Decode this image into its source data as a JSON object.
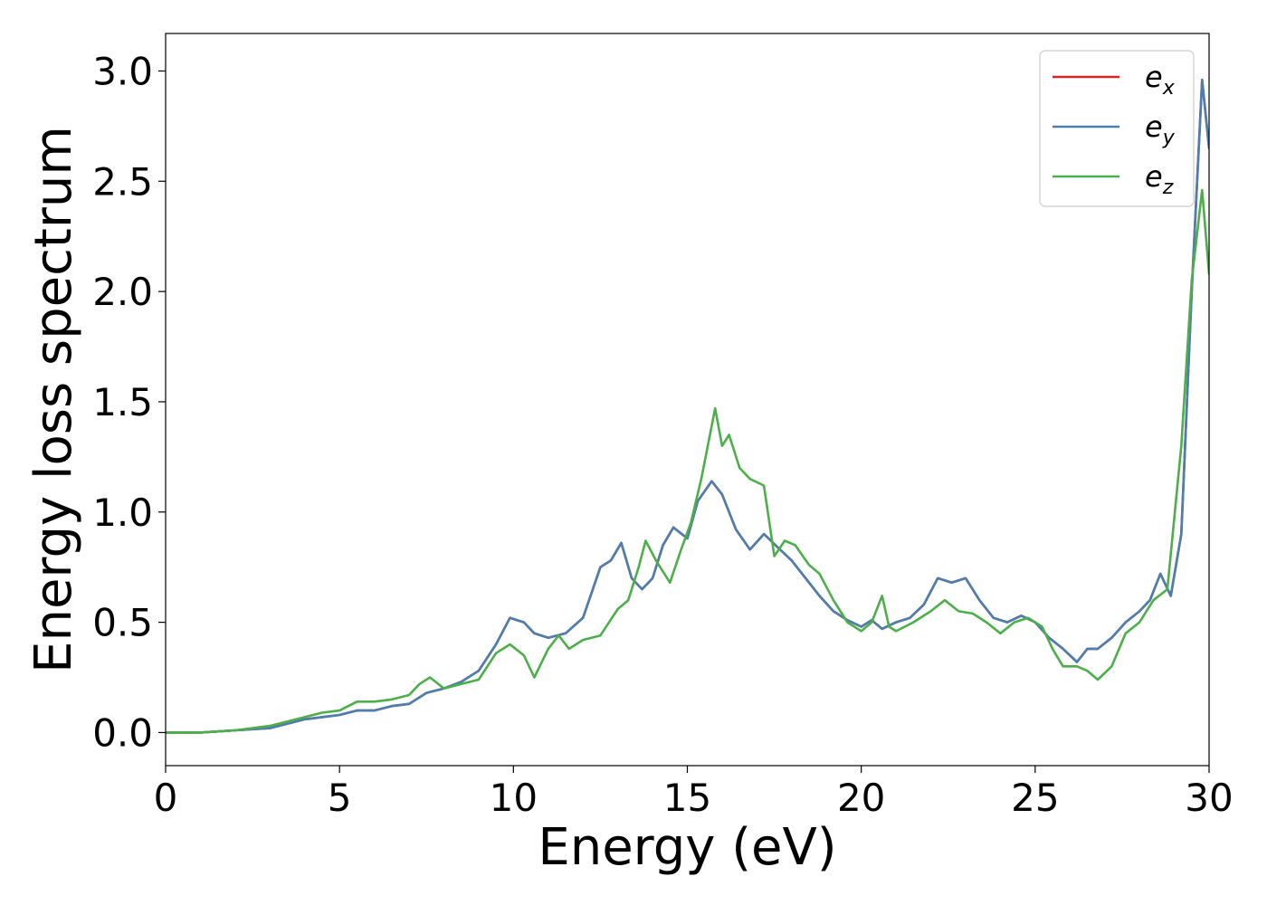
{
  "chart_data": {
    "type": "line",
    "title": "",
    "xlabel": "Energy (eV)",
    "ylabel": "Energy loss spectrum",
    "xlim": [
      0,
      30
    ],
    "ylim": [
      -0.15,
      3.17
    ],
    "xticks": [
      0,
      5,
      10,
      15,
      20,
      25,
      30
    ],
    "xtick_labels": [
      "0",
      "5",
      "10",
      "15",
      "20",
      "25",
      "30"
    ],
    "yticks": [
      0.0,
      0.5,
      1.0,
      1.5,
      2.0,
      2.5,
      3.0
    ],
    "ytick_labels": [
      "0.0",
      "0.5",
      "1.0",
      "1.5",
      "2.0",
      "2.5",
      "3.0"
    ],
    "grid": false,
    "legend_position": "top-right",
    "series": [
      {
        "name": "ex",
        "label_base": "e",
        "label_sub": "x",
        "color": "#d62728",
        "x": [
          0,
          1,
          2,
          3,
          3.5,
          4,
          4.5,
          5,
          5.5,
          6,
          6.5,
          7,
          7.5,
          8,
          8.5,
          9,
          9.5,
          9.9,
          10.3,
          10.6,
          11,
          11.5,
          12,
          12.5,
          12.8,
          13.1,
          13.4,
          13.7,
          14,
          14.3,
          14.6,
          15,
          15.3,
          15.7,
          16,
          16.4,
          16.8,
          17.2,
          17.6,
          18,
          18.4,
          18.8,
          19.2,
          19.6,
          20,
          20.3,
          20.6,
          21,
          21.4,
          21.8,
          22.2,
          22.6,
          23,
          23.4,
          23.8,
          24.2,
          24.6,
          25,
          25.4,
          25.8,
          26.2,
          26.5,
          26.8,
          27.2,
          27.6,
          28,
          28.3,
          28.6,
          28.9,
          29.2,
          29.5,
          29.8,
          30
        ],
        "y": [
          0.0,
          0.0,
          0.01,
          0.02,
          0.04,
          0.06,
          0.07,
          0.08,
          0.1,
          0.1,
          0.12,
          0.13,
          0.18,
          0.2,
          0.23,
          0.28,
          0.4,
          0.52,
          0.5,
          0.45,
          0.43,
          0.45,
          0.52,
          0.75,
          0.78,
          0.86,
          0.7,
          0.65,
          0.7,
          0.85,
          0.93,
          0.88,
          1.05,
          1.14,
          1.08,
          0.92,
          0.83,
          0.9,
          0.84,
          0.78,
          0.7,
          0.62,
          0.55,
          0.51,
          0.48,
          0.51,
          0.47,
          0.5,
          0.52,
          0.58,
          0.7,
          0.68,
          0.7,
          0.6,
          0.52,
          0.5,
          0.53,
          0.5,
          0.43,
          0.38,
          0.32,
          0.38,
          0.38,
          0.43,
          0.5,
          0.55,
          0.6,
          0.72,
          0.62,
          0.9,
          2.0,
          2.96,
          2.65
        ]
      },
      {
        "name": "ey",
        "label_base": "e",
        "label_sub": "y",
        "color": "#4a7fb0",
        "x": [
          0,
          1,
          2,
          3,
          3.5,
          4,
          4.5,
          5,
          5.5,
          6,
          6.5,
          7,
          7.5,
          8,
          8.5,
          9,
          9.5,
          9.9,
          10.3,
          10.6,
          11,
          11.5,
          12,
          12.5,
          12.8,
          13.1,
          13.4,
          13.7,
          14,
          14.3,
          14.6,
          15,
          15.3,
          15.7,
          16,
          16.4,
          16.8,
          17.2,
          17.6,
          18,
          18.4,
          18.8,
          19.2,
          19.6,
          20,
          20.3,
          20.6,
          21,
          21.4,
          21.8,
          22.2,
          22.6,
          23,
          23.4,
          23.8,
          24.2,
          24.6,
          25,
          25.4,
          25.8,
          26.2,
          26.5,
          26.8,
          27.2,
          27.6,
          28,
          28.3,
          28.6,
          28.9,
          29.2,
          29.5,
          29.8,
          30
        ],
        "y": [
          0.0,
          0.0,
          0.01,
          0.02,
          0.04,
          0.06,
          0.07,
          0.08,
          0.1,
          0.1,
          0.12,
          0.13,
          0.18,
          0.2,
          0.23,
          0.28,
          0.4,
          0.52,
          0.5,
          0.45,
          0.43,
          0.45,
          0.52,
          0.75,
          0.78,
          0.86,
          0.7,
          0.65,
          0.7,
          0.85,
          0.93,
          0.88,
          1.05,
          1.14,
          1.08,
          0.92,
          0.83,
          0.9,
          0.84,
          0.78,
          0.7,
          0.62,
          0.55,
          0.51,
          0.48,
          0.51,
          0.47,
          0.5,
          0.52,
          0.58,
          0.7,
          0.68,
          0.7,
          0.6,
          0.52,
          0.5,
          0.53,
          0.5,
          0.43,
          0.38,
          0.32,
          0.38,
          0.38,
          0.43,
          0.5,
          0.55,
          0.6,
          0.72,
          0.62,
          0.9,
          2.0,
          2.96,
          2.65
        ]
      },
      {
        "name": "ez",
        "label_base": "e",
        "label_sub": "z",
        "color": "#4daf4a",
        "x": [
          0,
          1,
          2,
          3,
          3.5,
          4,
          4.5,
          5,
          5.5,
          6,
          6.5,
          7,
          7.3,
          7.6,
          8,
          8.5,
          9,
          9.5,
          9.9,
          10.3,
          10.6,
          11,
          11.3,
          11.6,
          12,
          12.5,
          13,
          13.3,
          13.6,
          13.8,
          14.1,
          14.5,
          14.8,
          15.1,
          15.4,
          15.8,
          16,
          16.2,
          16.5,
          16.8,
          17.2,
          17.5,
          17.8,
          18.1,
          18.5,
          18.8,
          19.2,
          19.6,
          20,
          20.3,
          20.6,
          20.8,
          21,
          21.5,
          22,
          22.4,
          22.8,
          23.2,
          23.6,
          24,
          24.4,
          24.8,
          25.2,
          25.5,
          25.8,
          26.2,
          26.5,
          26.8,
          27.2,
          27.6,
          28,
          28.4,
          28.8,
          29.2,
          29.5,
          29.8,
          30
        ],
        "y": [
          0.0,
          0.0,
          0.01,
          0.03,
          0.05,
          0.07,
          0.09,
          0.1,
          0.14,
          0.14,
          0.15,
          0.17,
          0.22,
          0.25,
          0.2,
          0.22,
          0.24,
          0.36,
          0.4,
          0.35,
          0.25,
          0.38,
          0.44,
          0.38,
          0.42,
          0.44,
          0.56,
          0.6,
          0.75,
          0.87,
          0.78,
          0.68,
          0.82,
          0.95,
          1.15,
          1.47,
          1.3,
          1.35,
          1.2,
          1.15,
          1.12,
          0.8,
          0.87,
          0.85,
          0.76,
          0.72,
          0.6,
          0.5,
          0.46,
          0.5,
          0.62,
          0.48,
          0.46,
          0.5,
          0.55,
          0.6,
          0.55,
          0.54,
          0.5,
          0.45,
          0.5,
          0.52,
          0.48,
          0.38,
          0.3,
          0.3,
          0.28,
          0.24,
          0.3,
          0.45,
          0.5,
          0.6,
          0.65,
          1.3,
          2.05,
          2.46,
          2.08
        ]
      }
    ]
  }
}
